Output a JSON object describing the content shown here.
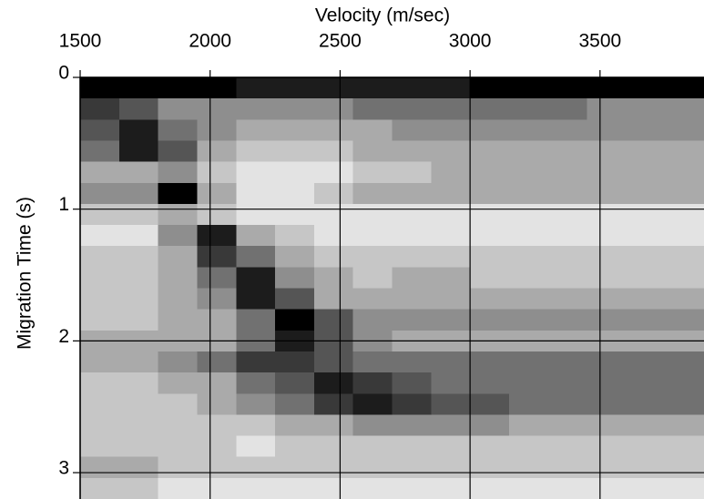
{
  "chart_data": {
    "type": "heatmap",
    "title": "Velocity (m/sec)",
    "ylabel": "Migration Time (s)",
    "xlim": [
      1500,
      3900
    ],
    "xticks": [
      1500,
      2000,
      2500,
      3000,
      3500
    ],
    "ylim": [
      0,
      3.2
    ],
    "yticks": [
      0,
      1,
      2,
      3
    ],
    "y_inverted": true,
    "x_axis_position": "top",
    "grid": true,
    "grid_color": "#000000",
    "zlim": [
      0,
      9
    ],
    "x_edges": [
      1500,
      1650,
      1800,
      1950,
      2100,
      2250,
      2400,
      2550,
      2700,
      2850,
      3000,
      3150,
      3300,
      3450,
      3600,
      3750,
      3900
    ],
    "y_edges": [
      0,
      0.16,
      0.32,
      0.48,
      0.64,
      0.8,
      0.96,
      1.12,
      1.28,
      1.44,
      1.6,
      1.76,
      1.92,
      2.08,
      2.24,
      2.4,
      2.56,
      2.72,
      2.88,
      3.04,
      3.2
    ],
    "values": [
      [
        9,
        9,
        9,
        9,
        8,
        8,
        8,
        8,
        8,
        8,
        9,
        9,
        9,
        9,
        9,
        9
      ],
      [
        7,
        6,
        4,
        4,
        4,
        4,
        4,
        5,
        5,
        5,
        5,
        5,
        5,
        4,
        4,
        4
      ],
      [
        6,
        8,
        5,
        4,
        3,
        3,
        3,
        3,
        4,
        4,
        4,
        4,
        4,
        4,
        4,
        4
      ],
      [
        5,
        8,
        6,
        3,
        2,
        2,
        2,
        3,
        3,
        3,
        3,
        3,
        3,
        3,
        3,
        3
      ],
      [
        3,
        3,
        4,
        2,
        1,
        1,
        1,
        2,
        2,
        3,
        3,
        3,
        3,
        3,
        3,
        3
      ],
      [
        4,
        4,
        9,
        3,
        1,
        1,
        2,
        3,
        3,
        3,
        3,
        3,
        3,
        3,
        3,
        3
      ],
      [
        2,
        2,
        3,
        2,
        1,
        1,
        1,
        1,
        1,
        1,
        1,
        1,
        1,
        1,
        1,
        1
      ],
      [
        1,
        1,
        4,
        8,
        3,
        2,
        1,
        1,
        1,
        1,
        1,
        1,
        1,
        1,
        1,
        1
      ],
      [
        2,
        2,
        3,
        7,
        5,
        3,
        2,
        2,
        2,
        2,
        2,
        2,
        2,
        2,
        2,
        2
      ],
      [
        2,
        2,
        3,
        5,
        8,
        4,
        3,
        2,
        3,
        3,
        2,
        2,
        2,
        2,
        2,
        2
      ],
      [
        2,
        2,
        3,
        4,
        8,
        6,
        3,
        3,
        3,
        3,
        3,
        3,
        3,
        3,
        3,
        3
      ],
      [
        2,
        2,
        3,
        3,
        5,
        9,
        6,
        4,
        4,
        4,
        4,
        4,
        4,
        4,
        4,
        4
      ],
      [
        3,
        3,
        3,
        3,
        5,
        8,
        6,
        4,
        3,
        3,
        3,
        3,
        3,
        3,
        3,
        3
      ],
      [
        3,
        3,
        4,
        5,
        7,
        7,
        6,
        5,
        5,
        5,
        5,
        5,
        5,
        5,
        5,
        5
      ],
      [
        2,
        2,
        3,
        3,
        5,
        6,
        8,
        7,
        6,
        5,
        5,
        5,
        5,
        5,
        5,
        5
      ],
      [
        2,
        2,
        2,
        3,
        4,
        5,
        7,
        8,
        7,
        6,
        6,
        5,
        5,
        5,
        5,
        5
      ],
      [
        2,
        2,
        2,
        2,
        2,
        3,
        3,
        4,
        4,
        4,
        4,
        3,
        3,
        3,
        3,
        3
      ],
      [
        2,
        2,
        2,
        2,
        1,
        2,
        2,
        2,
        2,
        2,
        2,
        2,
        2,
        2,
        2,
        2
      ],
      [
        3,
        3,
        2,
        2,
        2,
        2,
        2,
        2,
        2,
        2,
        2,
        2,
        2,
        2,
        2,
        2
      ],
      [
        2,
        2,
        1,
        1,
        1,
        1,
        1,
        1,
        1,
        1,
        1,
        1,
        1,
        1,
        1,
        1
      ]
    ]
  }
}
